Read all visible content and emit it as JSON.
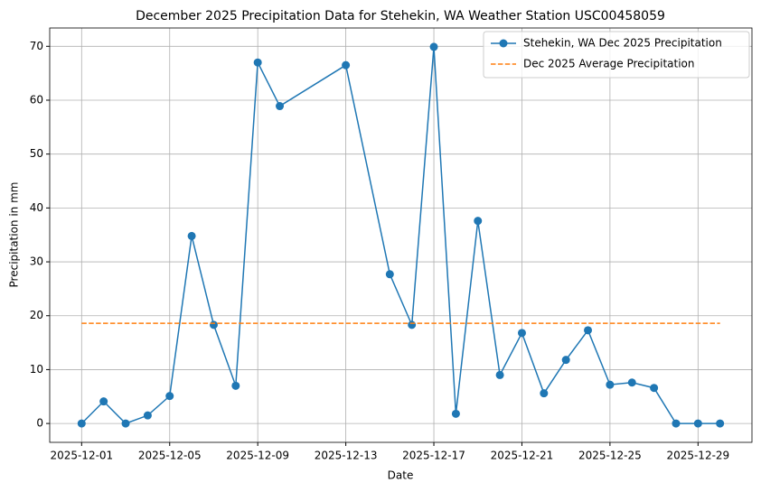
{
  "chart_data": {
    "type": "line",
    "title": "December 2025 Precipitation Data for Stehekin, WA Weather Station USC00458059",
    "x_label": "Date",
    "y_label": "Precipitation in mm",
    "series": [
      {
        "name": "Stehekin, WA Dec 2025 Precipitation",
        "color": "#1f77b4",
        "style": "solid",
        "marker": true,
        "x": [
          "2025-12-01",
          "2025-12-02",
          "2025-12-03",
          "2025-12-04",
          "2025-12-05",
          "2025-12-06",
          "2025-12-07",
          "2025-12-08",
          "2025-12-09",
          "2025-12-10",
          "2025-12-13",
          "2025-12-15",
          "2025-12-16",
          "2025-12-17",
          "2025-12-18",
          "2025-12-19",
          "2025-12-20",
          "2025-12-21",
          "2025-12-22",
          "2025-12-23",
          "2025-12-24",
          "2025-12-25",
          "2025-12-26",
          "2025-12-27",
          "2025-12-28",
          "2025-12-29",
          "2025-12-30"
        ],
        "values": [
          0,
          4.1,
          0,
          1.5,
          5.1,
          34.8,
          18.3,
          7.0,
          67.0,
          58.9,
          66.5,
          27.7,
          18.3,
          69.9,
          1.8,
          37.6,
          9.0,
          16.8,
          5.6,
          11.8,
          17.3,
          7.2,
          7.6,
          6.6,
          0,
          0,
          0
        ]
      },
      {
        "name": "Dec 2025 Average Precipitation",
        "color": "#ff7f0e",
        "style": "dashed",
        "marker": false,
        "x": [
          "2025-12-01",
          "2025-12-30"
        ],
        "values": [
          18.6,
          18.6
        ]
      }
    ],
    "xlim": [
      "2025-11-29T13:12",
      "2025-12-31T10:48"
    ],
    "xticks": [
      "2025-12-01",
      "2025-12-05",
      "2025-12-09",
      "2025-12-13",
      "2025-12-17",
      "2025-12-21",
      "2025-12-25",
      "2025-12-29"
    ],
    "ylim": [
      -3.5,
      73.4
    ],
    "yticks": [
      0,
      10,
      20,
      30,
      40,
      50,
      60,
      70
    ],
    "grid": true,
    "legend": "upper right"
  }
}
